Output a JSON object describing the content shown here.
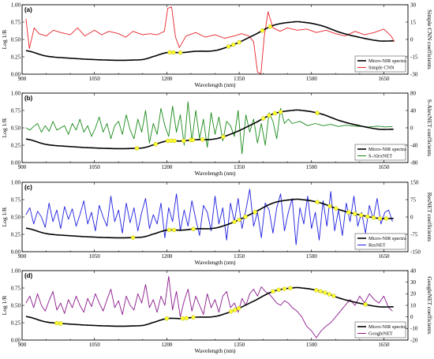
{
  "chart_data": [
    {
      "type": "line",
      "panel_label": "(a)",
      "xlabel": "Wavelength (nm)",
      "ylabel": "Log 1/R",
      "y2label": "Simple CNN coefficients",
      "xlim": [
        900,
        1700
      ],
      "ylim": [
        0,
        1
      ],
      "y2lim": [
        -30,
        30
      ],
      "xticks": [
        "900",
        "1050",
        "1200",
        "1350",
        "1500",
        "1650"
      ],
      "yticks": [
        "0.00",
        "0.25",
        "0.50",
        "0.75",
        "1.00"
      ],
      "y2ticks": [
        "-30",
        "-15",
        "0",
        "15",
        "30"
      ],
      "legend_position": "lower-right",
      "spectrum": {
        "name": "Micro-NIR spectra",
        "x": [
          908,
          950,
          1000,
          1050,
          1100,
          1150,
          1170,
          1200,
          1230,
          1260,
          1300,
          1340,
          1380,
          1420,
          1460,
          1480,
          1520,
          1560,
          1600,
          1640,
          1670
        ],
        "y": [
          0.34,
          0.26,
          0.23,
          0.21,
          0.2,
          0.21,
          0.25,
          0.31,
          0.31,
          0.33,
          0.34,
          0.43,
          0.56,
          0.7,
          0.75,
          0.75,
          0.7,
          0.6,
          0.53,
          0.48,
          0.48
        ]
      },
      "coef_series": {
        "name": "Simple CNN",
        "color": "#e8232a",
        "x": [
          908,
          915,
          925,
          935,
          950,
          965,
          980,
          1000,
          1015,
          1030,
          1050,
          1065,
          1080,
          1100,
          1115,
          1130,
          1150,
          1165,
          1180,
          1195,
          1202,
          1210,
          1218,
          1226,
          1240,
          1260,
          1280,
          1300,
          1320,
          1340,
          1355,
          1370,
          1380,
          1388,
          1395,
          1402,
          1410,
          1420,
          1435,
          1450,
          1470,
          1490,
          1510,
          1530,
          1550,
          1570,
          1590,
          1610,
          1630,
          1650,
          1665,
          1672
        ],
        "y": [
          18,
          -8,
          10,
          5,
          3,
          8,
          6,
          4,
          10,
          3,
          8,
          4,
          7,
          5,
          2,
          7,
          4,
          5,
          4,
          7,
          27,
          28,
          2,
          -7,
          3,
          6,
          2,
          4,
          1,
          3,
          5,
          3,
          -2,
          -28,
          -30,
          2,
          24,
          10,
          7,
          10,
          8,
          9,
          6,
          8,
          5,
          3,
          7,
          4,
          6,
          9,
          3,
          -2
        ]
      },
      "marker_x": [
        1206,
        1214,
        1228,
        1328,
        1338,
        1350,
        1398,
        1414
      ]
    },
    {
      "type": "line",
      "panel_label": "(b)",
      "xlabel": "Wavelength (nm)",
      "ylabel": "Log 1/R",
      "y2label": "S-AlexNET coefficients",
      "xlim": [
        900,
        1700
      ],
      "ylim": [
        0,
        1
      ],
      "y2lim": [
        -80,
        80
      ],
      "xticks": [
        "900",
        "1050",
        "1200",
        "1350",
        "1500",
        "1650"
      ],
      "yticks": [
        "0.00",
        "0.25",
        "0.50",
        "0.75",
        "1.00"
      ],
      "y2ticks": [
        "-80",
        "-40",
        "0",
        "40",
        "80"
      ],
      "legend_position": "lower-right",
      "spectrum": {
        "name": "Micro-NIR spectra",
        "x": [
          908,
          950,
          1000,
          1050,
          1100,
          1150,
          1170,
          1200,
          1230,
          1260,
          1300,
          1340,
          1380,
          1420,
          1460,
          1480,
          1520,
          1560,
          1600,
          1640,
          1670
        ],
        "y": [
          0.34,
          0.26,
          0.23,
          0.21,
          0.2,
          0.21,
          0.25,
          0.31,
          0.31,
          0.33,
          0.34,
          0.43,
          0.56,
          0.7,
          0.75,
          0.75,
          0.7,
          0.6,
          0.53,
          0.48,
          0.48
        ]
      },
      "coef_series": {
        "name": "S-AlexNET",
        "color": "#1a8a1a",
        "x": [
          908,
          916,
          924,
          932,
          940,
          948,
          956,
          964,
          972,
          980,
          988,
          996,
          1004,
          1012,
          1020,
          1028,
          1036,
          1044,
          1052,
          1060,
          1068,
          1076,
          1084,
          1092,
          1100,
          1108,
          1116,
          1124,
          1132,
          1140,
          1148,
          1156,
          1164,
          1172,
          1180,
          1188,
          1196,
          1204,
          1212,
          1220,
          1228,
          1236,
          1244,
          1252,
          1260,
          1268,
          1276,
          1284,
          1292,
          1300,
          1308,
          1316,
          1324,
          1332,
          1340,
          1348,
          1356,
          1364,
          1372,
          1380,
          1388,
          1396,
          1404,
          1412,
          1420,
          1428,
          1436,
          1444,
          1452,
          1460,
          1476,
          1492,
          1508,
          1524,
          1540,
          1556,
          1572,
          1588,
          1604,
          1620,
          1636,
          1652,
          1668
        ],
        "y": [
          0,
          -5,
          3,
          10,
          -10,
          5,
          -8,
          15,
          -5,
          0,
          5,
          -15,
          10,
          -5,
          20,
          -10,
          5,
          -20,
          0,
          25,
          -10,
          10,
          -25,
          5,
          15,
          -15,
          30,
          -5,
          -25,
          20,
          -10,
          40,
          -35,
          10,
          -15,
          45,
          5,
          -20,
          50,
          -10,
          30,
          -40,
          60,
          -30,
          40,
          -25,
          20,
          -45,
          35,
          -15,
          25,
          -30,
          15,
          5,
          -20,
          40,
          -60,
          30,
          -10,
          20,
          -35,
          10,
          -40,
          35,
          15,
          -25,
          45,
          10,
          20,
          10,
          15,
          5,
          10,
          5,
          8,
          3,
          6,
          4,
          3,
          2,
          4,
          2,
          3
        ]
      },
      "marker_x": [
        1138,
        1177,
        1202,
        1209,
        1216,
        1235,
        1250,
        1254,
        1274,
        1317,
        1400,
        1412,
        1424,
        1436,
        1512
      ]
    },
    {
      "type": "line",
      "panel_label": "(c)",
      "xlabel": "Wavelength (nm)",
      "ylabel": "Log 1/R",
      "y2label": "ResNET coefficients",
      "xlim": [
        900,
        1700
      ],
      "ylim": [
        0,
        1
      ],
      "y2lim": [
        -150,
        150
      ],
      "xticks": [
        "900",
        "1050",
        "1200",
        "1350",
        "1500",
        "1650"
      ],
      "yticks": [
        "0.00",
        "0.25",
        "0.50",
        "0.75",
        "1.00"
      ],
      "y2ticks": [
        "-150",
        "-75",
        "0",
        "75",
        "150"
      ],
      "legend_position": "lower-right",
      "spectrum": {
        "name": "Micro-NIR spectra",
        "x": [
          908,
          950,
          1000,
          1050,
          1100,
          1150,
          1170,
          1200,
          1230,
          1260,
          1300,
          1340,
          1380,
          1420,
          1460,
          1480,
          1520,
          1560,
          1600,
          1640,
          1670
        ],
        "y": [
          0.34,
          0.26,
          0.23,
          0.21,
          0.2,
          0.21,
          0.25,
          0.31,
          0.31,
          0.33,
          0.34,
          0.43,
          0.56,
          0.7,
          0.75,
          0.75,
          0.7,
          0.6,
          0.53,
          0.48,
          0.48
        ]
      },
      "coef_series": {
        "name": "ResNET",
        "color": "#1f1fe0",
        "x": [
          908,
          916,
          924,
          932,
          940,
          948,
          956,
          964,
          972,
          980,
          988,
          996,
          1004,
          1012,
          1020,
          1028,
          1036,
          1044,
          1052,
          1060,
          1068,
          1076,
          1084,
          1092,
          1100,
          1108,
          1116,
          1124,
          1132,
          1140,
          1148,
          1156,
          1164,
          1172,
          1180,
          1188,
          1196,
          1204,
          1212,
          1220,
          1228,
          1236,
          1244,
          1252,
          1260,
          1268,
          1276,
          1284,
          1292,
          1300,
          1308,
          1316,
          1324,
          1332,
          1340,
          1348,
          1356,
          1364,
          1372,
          1380,
          1388,
          1396,
          1404,
          1412,
          1420,
          1428,
          1436,
          1444,
          1452,
          1460,
          1468,
          1476,
          1484,
          1492,
          1500,
          1508,
          1516,
          1524,
          1532,
          1540,
          1548,
          1556,
          1564,
          1572,
          1580,
          1588,
          1596,
          1604,
          1612,
          1620,
          1628,
          1636,
          1644,
          1652,
          1660,
          1668
        ],
        "y": [
          10,
          40,
          -30,
          25,
          0,
          -45,
          60,
          -20,
          30,
          -50,
          45,
          -10,
          35,
          -40,
          10,
          70,
          -30,
          20,
          -60,
          50,
          0,
          -40,
          90,
          -20,
          30,
          -70,
          60,
          -25,
          40,
          -60,
          20,
          80,
          -50,
          10,
          -30,
          60,
          -90,
          40,
          -20,
          100,
          -60,
          30,
          -40,
          70,
          -10,
          -80,
          50,
          20,
          -60,
          90,
          -30,
          40,
          -100,
          60,
          -20,
          80,
          -50,
          30,
          120,
          -40,
          20,
          -90,
          60,
          30,
          -70,
          40,
          100,
          -60,
          20,
          80,
          -120,
          40,
          -30,
          90,
          -50,
          20,
          -100,
          70,
          -40,
          110,
          -60,
          30,
          -80,
          60,
          -20,
          90,
          -40,
          20,
          -70,
          50,
          -10,
          80,
          -30,
          20,
          30,
          -20
        ]
      },
      "marker_x": [
        1130,
        1205,
        1215,
        1255,
        1340,
        1350,
        1363,
        1383,
        1512,
        1538,
        1551,
        1577,
        1590,
        1603,
        1616,
        1629,
        1642,
        1655
      ]
    },
    {
      "type": "line",
      "panel_label": "(d)",
      "xlabel": "Wavelength (nm)",
      "ylabel": "Log 1/R",
      "y2label": "GoogleNET coefficients",
      "xlim": [
        900,
        1700
      ],
      "ylim": [
        0,
        1
      ],
      "y2lim": [
        -20,
        40
      ],
      "xticks": [
        "900",
        "1050",
        "1200",
        "1350",
        "1500",
        "1650"
      ],
      "yticks": [
        "0.00",
        "0.25",
        "0.50",
        "0.75",
        "1.00"
      ],
      "y2ticks": [
        "-20",
        "-10",
        "0",
        "10",
        "20",
        "30",
        "40"
      ],
      "legend_position": "lower-right",
      "spectrum": {
        "name": "Micro-NIR spectra",
        "x": [
          908,
          950,
          1000,
          1050,
          1100,
          1150,
          1170,
          1200,
          1230,
          1260,
          1300,
          1340,
          1380,
          1420,
          1460,
          1480,
          1520,
          1560,
          1600,
          1640,
          1670
        ],
        "y": [
          0.34,
          0.26,
          0.23,
          0.21,
          0.2,
          0.21,
          0.25,
          0.31,
          0.31,
          0.33,
          0.34,
          0.43,
          0.56,
          0.7,
          0.75,
          0.75,
          0.7,
          0.6,
          0.53,
          0.48,
          0.48
        ]
      },
      "coef_series": {
        "name": "GoogleNET",
        "color": "#8a1a8a",
        "x": [
          908,
          916,
          924,
          932,
          940,
          948,
          956,
          964,
          972,
          980,
          988,
          996,
          1004,
          1012,
          1020,
          1028,
          1036,
          1044,
          1052,
          1060,
          1068,
          1076,
          1084,
          1092,
          1100,
          1108,
          1116,
          1124,
          1132,
          1140,
          1148,
          1156,
          1164,
          1172,
          1180,
          1188,
          1196,
          1204,
          1212,
          1220,
          1228,
          1236,
          1244,
          1252,
          1260,
          1268,
          1276,
          1284,
          1292,
          1300,
          1308,
          1316,
          1324,
          1332,
          1340,
          1348,
          1356,
          1364,
          1372,
          1380,
          1388,
          1396,
          1404,
          1412,
          1420,
          1428,
          1436,
          1444,
          1452,
          1460,
          1470,
          1480,
          1490,
          1500,
          1510,
          1520,
          1530,
          1540,
          1550,
          1560,
          1570,
          1580,
          1590,
          1600,
          1610,
          1620,
          1630,
          1640,
          1650,
          1660,
          1668
        ],
        "y": [
          12,
          18,
          8,
          20,
          10,
          5,
          14,
          22,
          6,
          12,
          3,
          15,
          8,
          18,
          10,
          4,
          16,
          9,
          20,
          12,
          5,
          15,
          24,
          8,
          14,
          2,
          18,
          10,
          6,
          20,
          12,
          28,
          8,
          15,
          4,
          18,
          10,
          35,
          6,
          22,
          0,
          14,
          24,
          5,
          18,
          10,
          2,
          20,
          8,
          15,
          4,
          18,
          22,
          8,
          12,
          4,
          16,
          10,
          20,
          24,
          18,
          26,
          22,
          20,
          16,
          12,
          10,
          14,
          12,
          8,
          5,
          0,
          -8,
          -12,
          -18,
          -12,
          -8,
          -5,
          0,
          5,
          10,
          15,
          10,
          18,
          12,
          20,
          15,
          12,
          18,
          8,
          5
        ]
      },
      "marker_x": [
        972,
        980,
        1200,
        1233,
        1241,
        1255,
        1333,
        1341,
        1349,
        1420,
        1432,
        1444,
        1456,
        1510,
        1519,
        1528,
        1537,
        1546,
        1612
      ]
    }
  ]
}
